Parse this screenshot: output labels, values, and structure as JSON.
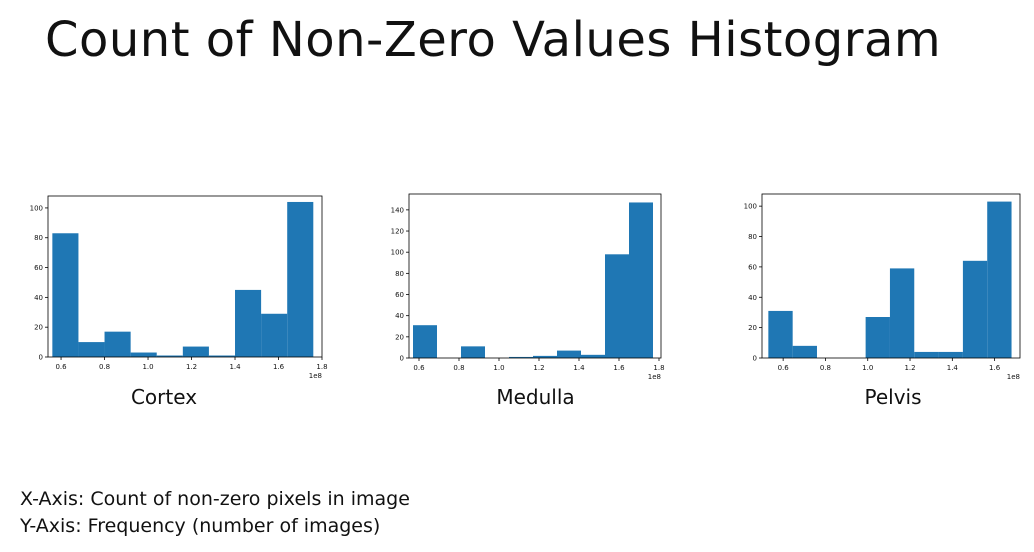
{
  "title": "Count of Non-Zero Values Histogram",
  "notes": {
    "x_axis": "X-Axis: Count of non-zero pixels in image",
    "y_axis": "Y-Axis: Frequency (number of images)"
  },
  "colors": {
    "bar": "#1f77b4"
  },
  "chart_data": [
    {
      "type": "bar",
      "title": "Cortex",
      "x_offset_label": "1e8",
      "xlim": [
        0.54,
        1.8
      ],
      "ylim": [
        0,
        108
      ],
      "xticks": [
        0.6,
        0.8,
        1.0,
        1.2,
        1.4,
        1.6,
        1.8
      ],
      "xtick_labels": [
        "0.6",
        "0.8",
        "1.0",
        "1.2",
        "1.4",
        "1.6",
        "1.8"
      ],
      "yticks": [
        0,
        20,
        40,
        60,
        80,
        100
      ],
      "bin_edges": [
        0.56,
        0.68,
        0.8,
        0.92,
        1.04,
        1.16,
        1.28,
        1.4,
        1.52,
        1.64,
        1.76
      ],
      "values": [
        83,
        10,
        17,
        3,
        1,
        7,
        1,
        45,
        29,
        104
      ]
    },
    {
      "type": "bar",
      "title": "Medulla",
      "x_offset_label": "1e8",
      "xlim": [
        0.55,
        1.81
      ],
      "ylim": [
        0,
        155
      ],
      "xticks": [
        0.6,
        0.8,
        1.0,
        1.2,
        1.4,
        1.6,
        1.8
      ],
      "xtick_labels": [
        "0.6",
        "0.8",
        "1.0",
        "1.2",
        "1.4",
        "1.6",
        "1.8"
      ],
      "yticks": [
        0,
        20,
        40,
        60,
        80,
        100,
        120,
        140
      ],
      "bin_edges": [
        0.57,
        0.69,
        0.81,
        0.93,
        1.05,
        1.17,
        1.29,
        1.41,
        1.53,
        1.65,
        1.77
      ],
      "values": [
        31,
        0,
        11,
        0,
        1,
        2,
        7,
        3,
        98,
        147
      ]
    },
    {
      "type": "bar",
      "title": "Pelvis",
      "x_offset_label": "1e8",
      "xlim": [
        0.5,
        1.72
      ],
      "ylim": [
        0,
        108
      ],
      "xticks": [
        0.6,
        0.8,
        1.0,
        1.2,
        1.4,
        1.6
      ],
      "xtick_labels": [
        "0.6",
        "0.8",
        "1.0",
        "1.2",
        "1.4",
        "1.6"
      ],
      "yticks": [
        0,
        20,
        40,
        60,
        80,
        100
      ],
      "bin_edges": [
        0.53,
        0.645,
        0.76,
        0.875,
        0.99,
        1.105,
        1.22,
        1.335,
        1.45,
        1.565,
        1.68
      ],
      "values": [
        31,
        8,
        0,
        0,
        27,
        59,
        4,
        4,
        64,
        103
      ]
    }
  ]
}
